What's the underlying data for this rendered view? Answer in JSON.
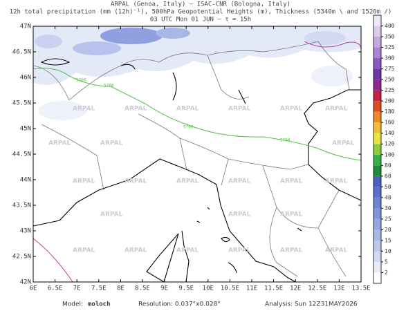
{
  "header": {
    "lines": [
      "ARPAL (Genoa, Italy)  –  ISAC-CNR (Bologna, Italy)",
      "12h total precipitation (mm (12h)⁻¹), 500hPa Geopotential Heights (m), Thickness (5340m \\ and 1520m /)",
      "03 UTC Mon 01 JUN  –  τ = 15h"
    ]
  },
  "map": {
    "lat_labels": [
      "47N",
      "46.5N",
      "46N",
      "45.5N",
      "45N",
      "44.5N",
      "44N",
      "43.5N",
      "43N",
      "42.5N",
      "42N"
    ],
    "lon_labels": [
      "6E",
      "6.5E",
      "7E",
      "7.5E",
      "8E",
      "8.5E",
      "9E",
      "9.5E",
      "10E",
      "10.5E",
      "11E",
      "11.5E",
      "12E",
      "12.5E",
      "13E",
      "13.5E"
    ],
    "watermark": "ARPAL",
    "contour_labels": [
      "5760",
      "5760",
      "5760",
      "5760"
    ]
  },
  "colorbar": {
    "labels": [
      "2",
      "5",
      "10",
      "15",
      "20",
      "25",
      "30",
      "40",
      "50",
      "60",
      "80",
      "100",
      "120",
      "140",
      "160",
      "180",
      "200",
      "225",
      "250",
      "275",
      "300",
      "325",
      "350",
      "400"
    ],
    "colors": [
      "#ffffff",
      "#e8ecf8",
      "#d2daf2",
      "#bcc8ec",
      "#a8b8e6",
      "#94a6e0",
      "#8094da",
      "#6c82d2",
      "#5a70ca",
      "#4a60c2",
      "#1f8a3a",
      "#38b048",
      "#8ccc3c",
      "#e6e63a",
      "#f0c030",
      "#ec8a2a",
      "#e04a24",
      "#c82040",
      "#8c2a8c",
      "#6a38a8",
      "#8a5ac0",
      "#a884d0",
      "#c4a8de",
      "#dccaea",
      "#f0e8f6"
    ]
  },
  "footer": {
    "model_label": "Model:",
    "model": "moloch",
    "resolution": "Resolution: 0.037°x0.028°",
    "analysis": "Analysis: Sun 12Z31MAY2026"
  }
}
